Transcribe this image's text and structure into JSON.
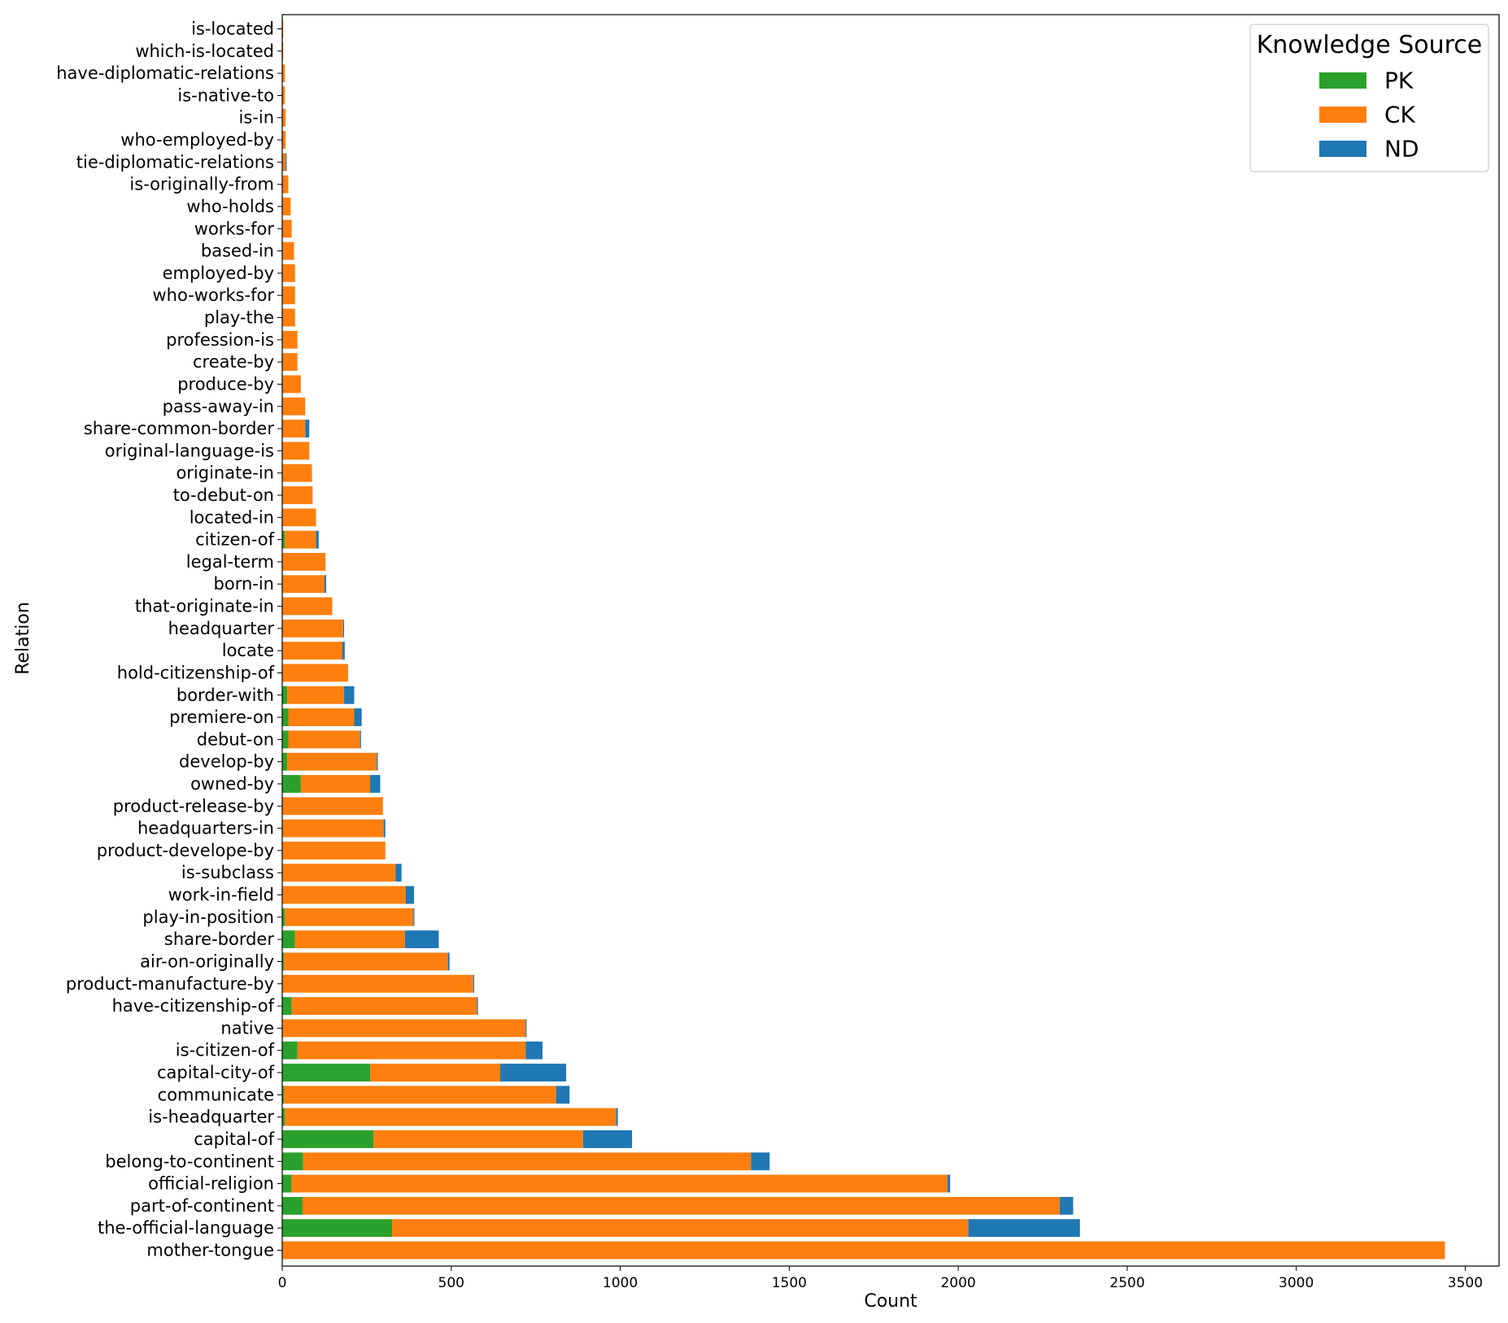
{
  "chart_data": {
    "type": "bar",
    "orientation": "horizontal",
    "stacked": true,
    "xlabel": "Count",
    "ylabel": "Relation",
    "xlim": [
      0,
      3600
    ],
    "xticks": [
      0,
      500,
      1000,
      1500,
      2000,
      2500,
      3000,
      3500
    ],
    "grid": false,
    "legend": {
      "title": "Knowledge Source",
      "position": "top-right"
    },
    "categories": [
      "mother-tongue",
      "the-official-language",
      "part-of-continent",
      "official-religion",
      "belong-to-continent",
      "capital-of",
      "is-headquarter",
      "communicate",
      "capital-city-of",
      "is-citizen-of",
      "native",
      "have-citizenship-of",
      "product-manufacture-by",
      "air-on-originally",
      "share-border",
      "play-in-position",
      "work-in-field",
      "is-subclass",
      "product-develope-by",
      "headquarters-in",
      "product-release-by",
      "owned-by",
      "develop-by",
      "debut-on",
      "premiere-on",
      "border-with",
      "hold-citizenship-of",
      "locate",
      "headquarter",
      "that-originate-in",
      "born-in",
      "legal-term",
      "citizen-of",
      "located-in",
      "to-debut-on",
      "originate-in",
      "original-language-is",
      "share-common-border",
      "pass-away-in",
      "produce-by",
      "create-by",
      "profession-is",
      "play-the",
      "who-works-for",
      "employed-by",
      "based-in",
      "works-for",
      "who-holds",
      "is-originally-from",
      "tie-diplomatic-relations",
      "who-employed-by",
      "is-in",
      "is-native-to",
      "have-diplomatic-relations",
      "which-is-located",
      "is-located"
    ],
    "series": [
      {
        "name": "PK",
        "color": "#2ca02c",
        "values": [
          0,
          325,
          60,
          28,
          62,
          270,
          8,
          5,
          260,
          45,
          0,
          28,
          0,
          5,
          38,
          8,
          0,
          0,
          0,
          0,
          0,
          55,
          15,
          18,
          18,
          15,
          0,
          0,
          0,
          0,
          0,
          0,
          8,
          0,
          0,
          0,
          0,
          0,
          0,
          0,
          0,
          0,
          0,
          0,
          0,
          0,
          0,
          0,
          0,
          0,
          0,
          0,
          0,
          0,
          0,
          0
        ]
      },
      {
        "name": "CK",
        "color": "#ff7f0e",
        "values": [
          3440,
          1705,
          2240,
          1940,
          1325,
          620,
          980,
          805,
          385,
          675,
          720,
          548,
          565,
          485,
          325,
          380,
          365,
          335,
          305,
          300,
          298,
          205,
          265,
          212,
          195,
          168,
          195,
          178,
          180,
          148,
          125,
          128,
          92,
          100,
          90,
          88,
          80,
          68,
          68,
          55,
          45,
          45,
          38,
          38,
          38,
          35,
          28,
          25,
          18,
          10,
          10,
          10,
          8,
          8,
          3,
          3
        ]
      },
      {
        "name": "ND",
        "color": "#1f77b4",
        "values": [
          0,
          330,
          40,
          8,
          55,
          145,
          5,
          40,
          195,
          50,
          3,
          3,
          3,
          5,
          100,
          3,
          25,
          18,
          0,
          5,
          0,
          30,
          3,
          3,
          22,
          30,
          0,
          7,
          3,
          0,
          5,
          0,
          8,
          0,
          0,
          0,
          0,
          12,
          0,
          0,
          0,
          0,
          0,
          0,
          0,
          0,
          0,
          0,
          0,
          3,
          0,
          0,
          0,
          0,
          0,
          0
        ]
      }
    ]
  }
}
